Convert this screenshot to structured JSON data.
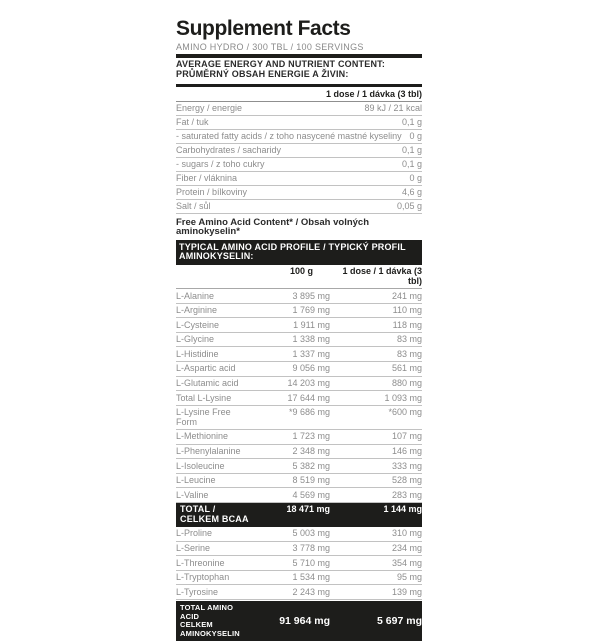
{
  "label": {
    "title": "Supplement Facts",
    "subtitle": "AMINO HYDRO / 300 TBL / 100 SERVINGS",
    "section_header_en": "AVERAGE ENERGY AND NUTRIENT CONTENT:",
    "section_header_cz": "PRŮMĚRNÝ OBSAH ENERGIE A ŽIVIN:",
    "dose_header": "1 dose / 1 dávka (3 tbl)",
    "nutrients": [
      {
        "name": "Energy / energie",
        "value": "89 kJ / 21 kcal"
      },
      {
        "name": "Fat / tuk",
        "value": "0,1 g"
      },
      {
        "name": "- saturated fatty acids / z toho nasycené mastné kyseliny",
        "value": "0 g"
      },
      {
        "name": "Carbohydrates / sacharidy",
        "value": "0,1 g"
      },
      {
        "name": "- sugars / z toho cukry",
        "value": "0,1 g"
      },
      {
        "name": "Fiber / vláknina",
        "value": "0 g"
      },
      {
        "name": "Protein / bílkoviny",
        "value": "4,6 g"
      },
      {
        "name": "Salt / sůl",
        "value": "0,05 g"
      }
    ],
    "free_amino_note": "Free Amino Acid Content* / Obsah volných aminokyselin*",
    "profile_header": "TYPICAL AMINO ACID PROFILE / TYPICKÝ PROFIL AMINOKYSELIN:",
    "col_100g": "100 g",
    "col_dose": "1 dose / 1 dávka (3 tbl)",
    "amino_profile_1": [
      {
        "name": "L-Alanine",
        "per_100g": "3 895 mg",
        "per_dose": "241 mg"
      },
      {
        "name": "L-Arginine",
        "per_100g": "1 769 mg",
        "per_dose": "110 mg"
      },
      {
        "name": "L-Cysteine",
        "per_100g": "1 911 mg",
        "per_dose": "118 mg"
      },
      {
        "name": "L-Glycine",
        "per_100g": "1 338 mg",
        "per_dose": "83 mg"
      },
      {
        "name": "L-Histidine",
        "per_100g": "1 337 mg",
        "per_dose": "83 mg"
      },
      {
        "name": "L-Aspartic acid",
        "per_100g": "9 056 mg",
        "per_dose": "561 mg"
      },
      {
        "name": "L-Glutamic acid",
        "per_100g": "14 203 mg",
        "per_dose": "880 mg"
      },
      {
        "name": "Total L-Lysine",
        "per_100g": "17 644 mg",
        "per_dose": "1 093 mg"
      },
      {
        "name": "L-Lysine Free Form",
        "per_100g": "*9 686 mg",
        "per_dose": "*600 mg"
      },
      {
        "name": "L-Methionine",
        "per_100g": "1 723 mg",
        "per_dose": "107 mg"
      },
      {
        "name": "L-Phenylalanine",
        "per_100g": "2 348 mg",
        "per_dose": "146 mg"
      },
      {
        "name": "L-Isoleucine",
        "per_100g": "5 382 mg",
        "per_dose": "333 mg"
      },
      {
        "name": "L-Leucine",
        "per_100g": "8 519 mg",
        "per_dose": "528 mg"
      },
      {
        "name": "L-Valine",
        "per_100g": "4 569 mg",
        "per_dose": "283 mg"
      }
    ],
    "bcaa_total": {
      "name": "TOTAL / CELKEM BCAA",
      "per_100g": "18 471 mg",
      "per_dose": "1 144 mg"
    },
    "amino_profile_2": [
      {
        "name": "L-Proline",
        "per_100g": "5 003 mg",
        "per_dose": "310 mg"
      },
      {
        "name": "L-Serine",
        "per_100g": "3 778 mg",
        "per_dose": "234 mg"
      },
      {
        "name": "L-Threonine",
        "per_100g": "5 710 mg",
        "per_dose": "354 mg"
      },
      {
        "name": "L-Tryptophan",
        "per_100g": "1 534 mg",
        "per_dose": "95 mg"
      },
      {
        "name": "L-Tyrosine",
        "per_100g": "2 243 mg",
        "per_dose": "139 mg"
      }
    ],
    "grand_total": {
      "name_line1": "TOTAL AMINO ACID",
      "name_line2": "CELKEM AMINOKYSELIN",
      "per_100g": "91 964 mg",
      "per_dose": "5 697 mg"
    }
  },
  "colors": {
    "ink": "#1d1d1b",
    "muted_text": "#8d8d8d",
    "divider": "#c2c2c2",
    "bar_background": "#1d1d1b",
    "bar_text": "#ffffff",
    "page_background": "#ffffff"
  }
}
